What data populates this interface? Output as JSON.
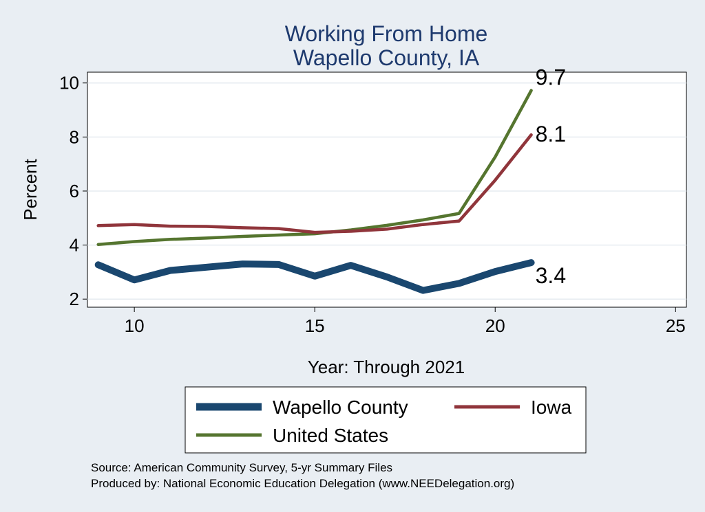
{
  "chart_data": {
    "type": "line",
    "title": [
      "Working From Home",
      "Wapello County, IA"
    ],
    "xlabel": "Year: Through 2021",
    "ylabel": "Percent",
    "xlim": [
      8.7,
      25.3
    ],
    "ylim": [
      1.7,
      10.4
    ],
    "xticks": [
      10,
      15,
      20,
      25
    ],
    "yticks": [
      2,
      4,
      6,
      8,
      10
    ],
    "grid": true,
    "legend_position": "bottom",
    "series": [
      {
        "name": "Wapello County",
        "color": "#1a476f",
        "x": [
          9,
          10,
          11,
          12,
          13,
          14,
          15,
          16,
          17,
          18,
          19,
          20,
          21
        ],
        "values": [
          3.27,
          2.71,
          3.06,
          3.18,
          3.3,
          3.28,
          2.85,
          3.25,
          2.82,
          2.32,
          2.58,
          3.02,
          3.35
        ],
        "end_label": "3.4"
      },
      {
        "name": "Iowa",
        "color": "#90353b",
        "x": [
          9,
          10,
          11,
          12,
          13,
          14,
          15,
          16,
          17,
          18,
          19,
          20,
          21
        ],
        "values": [
          4.72,
          4.76,
          4.7,
          4.69,
          4.64,
          4.61,
          4.47,
          4.51,
          4.59,
          4.76,
          4.89,
          6.4,
          8.08
        ],
        "end_label": "8.1"
      },
      {
        "name": "United States",
        "color": "#55752f",
        "x": [
          9,
          10,
          11,
          12,
          13,
          14,
          15,
          16,
          17,
          18,
          19,
          20,
          21
        ],
        "values": [
          4.02,
          4.13,
          4.21,
          4.26,
          4.32,
          4.37,
          4.42,
          4.56,
          4.73,
          4.93,
          5.17,
          7.26,
          9.72
        ],
        "end_label": "9.7"
      }
    ]
  },
  "notes": [
    "Source: American Community Survey, 5-yr Summary Files",
    "Produced by: National Economic Education Delegation (www.NEEDelegation.org)"
  ]
}
